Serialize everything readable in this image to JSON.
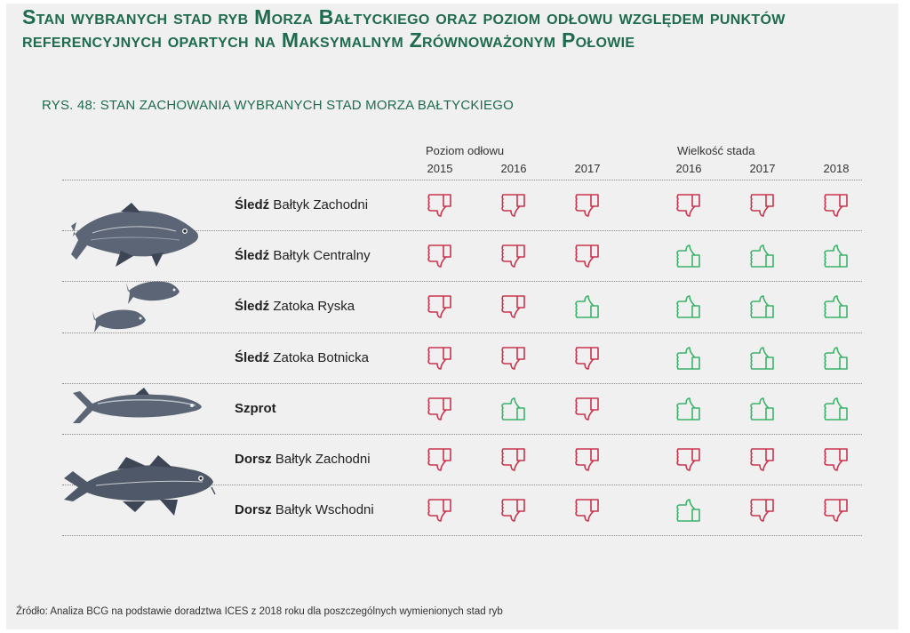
{
  "header": {
    "title": "Stan wybranych stad ryb Morza Bałtyckiego oraz poziom odłowu względem punktów referencyjnych opartych na Maksymalnym Zrównoważonym Połowie",
    "figure_title": "RYS. 48: STAN ZACHOWANIA WYBRANYCH STAD MORZA BAŁTYCKIEGO"
  },
  "columns": {
    "fishing_label": "Poziom odłowu",
    "fishing_years": [
      "2015",
      "2016",
      "2017"
    ],
    "stock_label": "Wielkość stada",
    "stock_years": [
      "2016",
      "2017",
      "2018"
    ]
  },
  "colors": {
    "good": "#3bb36a",
    "bad": "#c9344f",
    "title": "#1e6b4e"
  },
  "rows": [
    {
      "species": "Śledź",
      "region": "Bałtyk Zachodni",
      "fishing": [
        "bad",
        "bad",
        "bad"
      ],
      "stock": [
        "bad",
        "bad",
        "bad"
      ]
    },
    {
      "species": "Śledź",
      "region": "Bałtyk Centralny",
      "fishing": [
        "bad",
        "bad",
        "bad"
      ],
      "stock": [
        "good",
        "good",
        "good"
      ]
    },
    {
      "species": "Śledź",
      "region": "Zatoka Ryska",
      "fishing": [
        "bad",
        "bad",
        "good"
      ],
      "stock": [
        "good",
        "good",
        "good"
      ]
    },
    {
      "species": "Śledź",
      "region": "Zatoka Botnicka",
      "fishing": [
        "bad",
        "bad",
        "bad"
      ],
      "stock": [
        "good",
        "good",
        "good"
      ]
    },
    {
      "species": "Szprot",
      "region": "",
      "fishing": [
        "bad",
        "good",
        "bad"
      ],
      "stock": [
        "good",
        "good",
        "good"
      ]
    },
    {
      "species": "Dorsz",
      "region": "Bałtyk Zachodni",
      "fishing": [
        "bad",
        "bad",
        "bad"
      ],
      "stock": [
        "bad",
        "bad",
        "bad"
      ]
    },
    {
      "species": "Dorsz",
      "region": "Bałtyk Wschodni",
      "fishing": [
        "bad",
        "bad",
        "bad"
      ],
      "stock": [
        "good",
        "bad",
        "bad"
      ]
    }
  ],
  "icons": {
    "good": "thumbs-up-icon",
    "bad": "thumbs-down-icon"
  },
  "footer": "Źródło: Analiza BCG na podstawie doradztwa ICES z 2018 roku dla poszczególnych wymienionych stad ryb"
}
